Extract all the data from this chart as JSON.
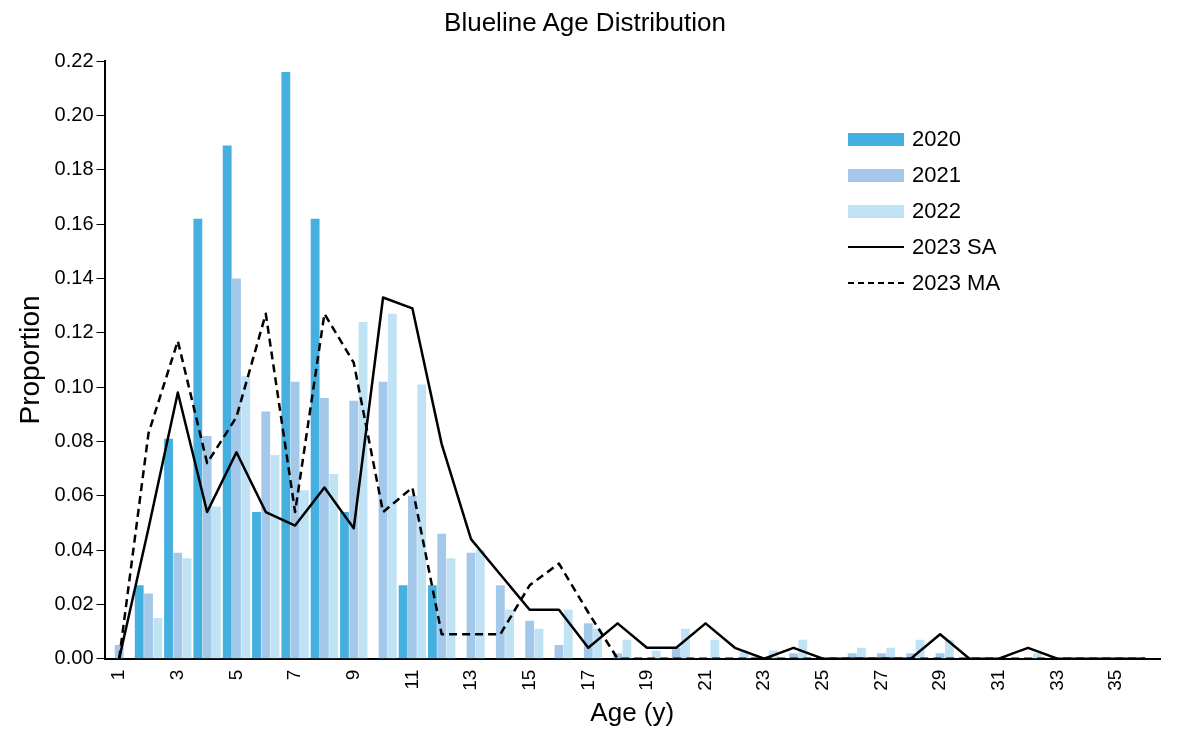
{
  "chart_data": {
    "type": "bar",
    "title": "Blueline Age Distribution",
    "xlabel": "Age (y)",
    "ylabel": "Proportion",
    "categories": [
      "1",
      null,
      "3",
      null,
      "5",
      null,
      "7",
      null,
      "9",
      null,
      "11",
      null,
      "13",
      null,
      "15",
      null,
      "17",
      null,
      "19",
      null,
      "21",
      null,
      "23",
      null,
      "25",
      null,
      "27",
      null,
      "29",
      null,
      "31",
      null,
      "33",
      null,
      "35",
      null
    ],
    "series": [
      {
        "name": "2020",
        "color": "#45b0e0",
        "values": [
          0,
          0.027,
          0.081,
          0.162,
          0.189,
          0.054,
          0.216,
          0.162,
          0.054,
          0,
          0.027,
          0.027,
          0,
          0,
          0,
          0,
          0,
          0,
          0,
          0,
          0,
          0,
          0,
          0,
          0,
          0,
          0,
          0,
          0,
          0,
          0,
          0,
          0,
          0,
          0,
          0
        ]
      },
      {
        "name": "2021",
        "color": "#a4c8ea",
        "values": [
          0.005,
          0.024,
          0.039,
          0.082,
          0.14,
          0.091,
          0.102,
          0.096,
          0.095,
          0.102,
          0.06,
          0.046,
          0.039,
          0.027,
          0.014,
          0.005,
          0.013,
          0.002,
          0,
          0.004,
          0,
          0,
          0,
          0.002,
          0,
          0.002,
          0.002,
          0.002,
          0.002,
          0,
          0,
          0,
          0,
          0,
          0,
          0
        ]
      },
      {
        "name": "2022",
        "color": "#bfe3f4",
        "values": [
          0,
          0.015,
          0.037,
          0.056,
          0.104,
          0.075,
          0.062,
          0.068,
          0.124,
          0.127,
          0.101,
          0.037,
          0.04,
          0.018,
          0.011,
          0.018,
          0.011,
          0.007,
          0.003,
          0.011,
          0.007,
          0.003,
          0.003,
          0.007,
          0,
          0.004,
          0.004,
          0.007,
          0.007,
          0,
          0,
          0.002,
          0,
          0,
          0,
          0
        ]
      },
      {
        "name": "2023 SA",
        "type": "line",
        "line_style": "solid",
        "color": "#000000",
        "values": [
          0,
          0.048,
          0.098,
          0.054,
          0.076,
          0.054,
          0.049,
          0.063,
          0.048,
          0.133,
          0.129,
          0.079,
          0.044,
          0.031,
          0.018,
          0.018,
          0.004,
          0.013,
          0.004,
          0.004,
          0.013,
          0.004,
          0,
          0.004,
          0,
          0,
          0,
          0,
          0.009,
          0,
          0,
          0.004,
          0,
          0,
          0,
          0
        ]
      },
      {
        "name": "2023 MA",
        "type": "line",
        "line_style": "dashed",
        "color": "#000000",
        "values": [
          0,
          0.083,
          0.117,
          0.072,
          0.089,
          0.127,
          0.054,
          0.127,
          0.109,
          0.054,
          0.063,
          0.009,
          0.009,
          0.009,
          0.027,
          0.035,
          0.017,
          0,
          0,
          0,
          0,
          0,
          0,
          0,
          0,
          0,
          0,
          0,
          0,
          0,
          0,
          0,
          0,
          0,
          0,
          0
        ]
      }
    ],
    "ylim": [
      0,
      0.22
    ],
    "yticks": [
      {
        "value": 0,
        "label": "0.00"
      },
      {
        "value": 0.02,
        "label": "0.02"
      },
      {
        "value": 0.04,
        "label": "0.04"
      },
      {
        "value": 0.06,
        "label": "0.06"
      },
      {
        "value": 0.08,
        "label": "0.08"
      },
      {
        "value": 0.1,
        "label": "0.10"
      },
      {
        "value": 0.12,
        "label": "0.12"
      },
      {
        "value": 0.14,
        "label": "0.14"
      },
      {
        "value": 0.16,
        "label": "0.16"
      },
      {
        "value": 0.18,
        "label": "0.18"
      },
      {
        "value": 0.2,
        "label": "0.20"
      },
      {
        "value": 0.22,
        "label": "0.22"
      }
    ],
    "grid": false,
    "legend": "top right",
    "marker": "none"
  }
}
